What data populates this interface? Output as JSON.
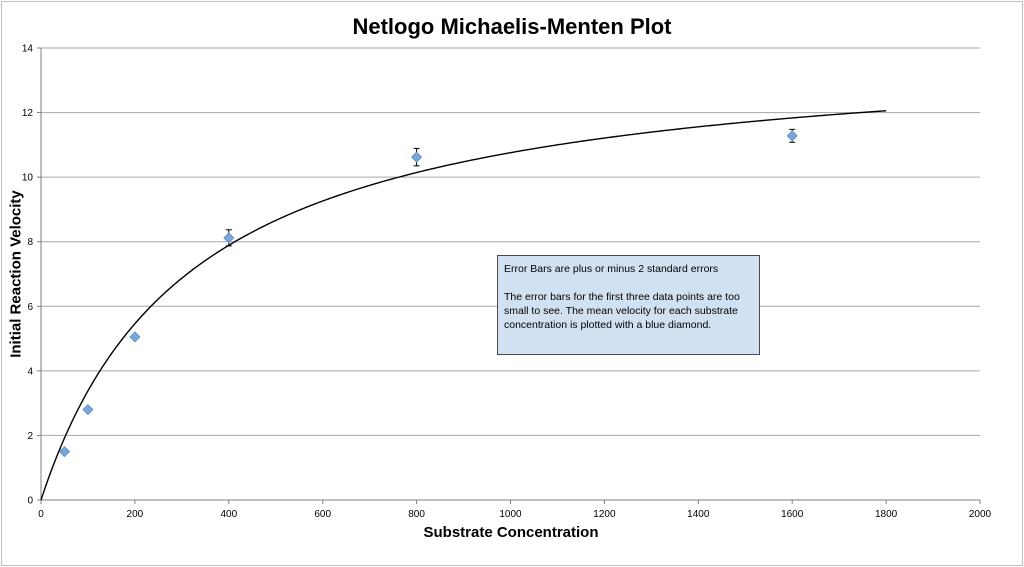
{
  "chart_data": {
    "type": "scatter",
    "title": "Netlogo Michaelis-Menten Plot",
    "xlabel": "Substrate Concentration",
    "ylabel": "Initial Reaction Velocity",
    "xlim": [
      0,
      2000
    ],
    "ylim": [
      0,
      14
    ],
    "xticks": [
      0,
      200,
      400,
      600,
      800,
      1000,
      1200,
      1400,
      1600,
      1800,
      2000
    ],
    "yticks": [
      0,
      2,
      4,
      6,
      8,
      10,
      12,
      14
    ],
    "grid": "horizontal",
    "points": [
      {
        "x": 50,
        "y": 1.5,
        "err": 0.05
      },
      {
        "x": 100,
        "y": 2.8,
        "err": 0.05
      },
      {
        "x": 200,
        "y": 5.05,
        "err": 0.05
      },
      {
        "x": 400,
        "y": 8.12,
        "err": 0.25
      },
      {
        "x": 800,
        "y": 10.62,
        "err": 0.27
      },
      {
        "x": 1600,
        "y": 11.28,
        "err": 0.2
      }
    ],
    "curve": {
      "Vmax": 14.2,
      "Km": 320,
      "xmax": 1800
    },
    "point_color": "#7aa7d9",
    "curve_color": "#000000",
    "annotation": {
      "line1": "Error Bars are plus or minus 2 standard errors",
      "line2": "The error bars for the first three data points are too small to see.  The mean velocity for each substrate concentration is plotted with a blue diamond."
    }
  }
}
